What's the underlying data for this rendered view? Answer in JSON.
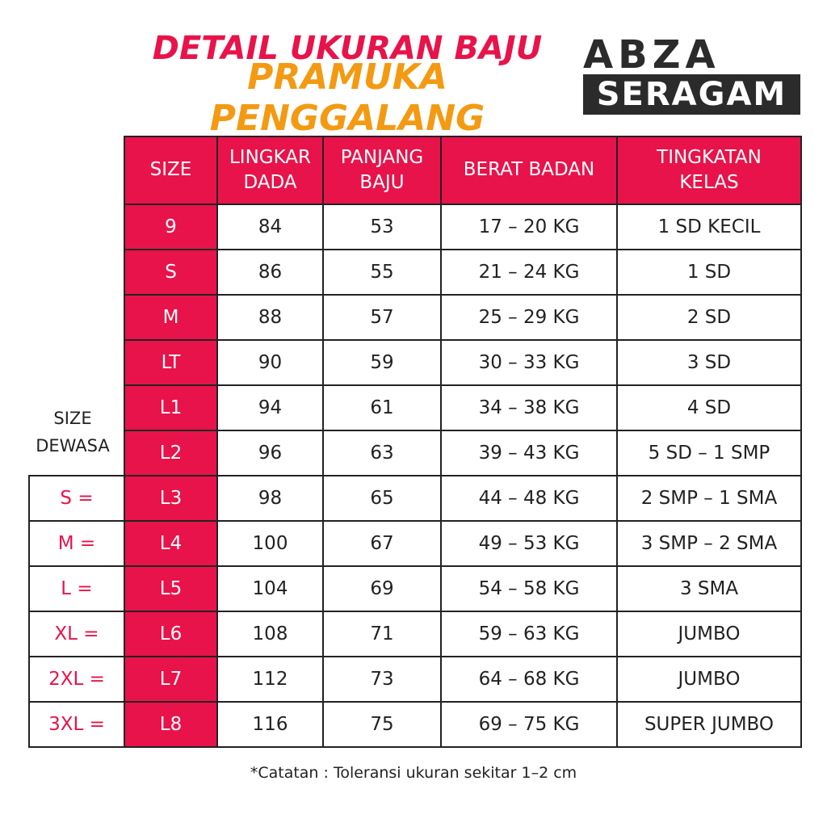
{
  "header": {
    "title_line1": "DETAIL UKURAN BAJU",
    "title_line2": "PRAMUKA PENGGALANG",
    "logo_top": "ABZA",
    "logo_bottom": "SERAGAM"
  },
  "table": {
    "columns": [
      "SIZE",
      "LINGKAR DADA",
      "PANJANG BAJU",
      "BERAT BADAN",
      "TINGKATAN KELAS"
    ],
    "rows": [
      [
        "9",
        84,
        53,
        "17 – 20  KG",
        "1 SD KECIL"
      ],
      [
        "S",
        86,
        55,
        "21 – 24  KG",
        "1  SD"
      ],
      [
        "M",
        88,
        57,
        "25 – 29  KG",
        "2  SD"
      ],
      [
        "LT",
        90,
        59,
        "30 – 33  KG",
        "3  SD"
      ],
      [
        "L1",
        94,
        61,
        "34 – 38  KG",
        "4  SD"
      ],
      [
        "L2",
        96,
        63,
        "39 – 43  KG",
        "5  SD – 1  SMP"
      ],
      [
        "L3",
        98,
        65,
        "44 – 48  KG",
        "2  SMP – 1  SMA"
      ],
      [
        "L4",
        100,
        67,
        "49 – 53  KG",
        "3  SMP – 2  SMA"
      ],
      [
        "L5",
        104,
        69,
        "54 – 58  KG",
        "3  SMA"
      ],
      [
        "L6",
        108,
        71,
        "59 – 63  KG",
        "JUMBO"
      ],
      [
        "L7",
        112,
        73,
        "64 – 68  KG",
        "JUMBO"
      ],
      [
        "L8",
        116,
        75,
        "69 – 75 KG",
        "SUPER JUMBO"
      ]
    ]
  },
  "adult_sizes": {
    "label": "SIZE DEWASA",
    "items": [
      "S =",
      "M =",
      "L =",
      "XL =",
      "2XL =",
      "3XL ="
    ]
  },
  "note": "*Catatan : Toleransi ukuran sekitar 1–2 cm"
}
